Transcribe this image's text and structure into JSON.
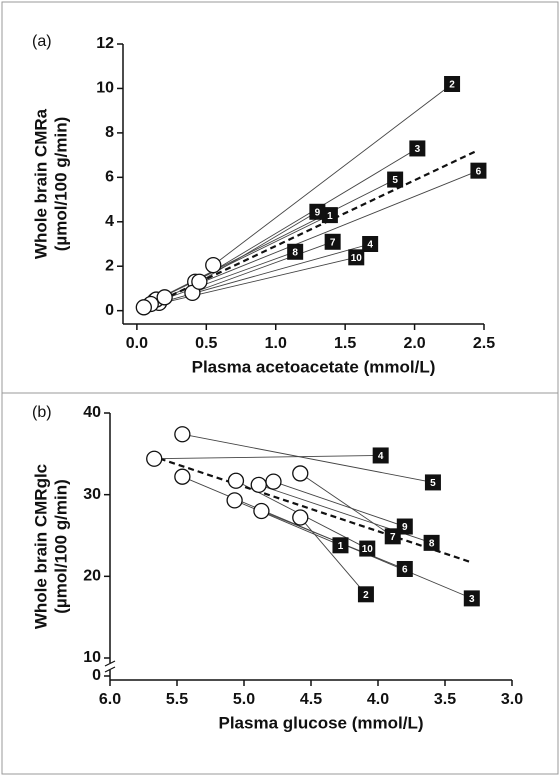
{
  "chart_data": [
    {
      "type": "scatter",
      "panel_label": "(a)",
      "xlabel": "Plasma acetoacetate (mmol/L)",
      "ylabel": [
        "Whole brain CMRa",
        "(µmol/100 g/min)"
      ],
      "subjects": [
        "1",
        "2",
        "3",
        "4",
        "5",
        "6",
        "7",
        "8",
        "9",
        "10"
      ],
      "baseline": {
        "x": [
          0.13,
          0.55,
          0.42,
          0.16,
          0.14,
          0.2,
          0.4,
          0.1,
          0.45,
          0.05
        ],
        "y": [
          0.45,
          2.05,
          1.3,
          0.35,
          0.5,
          0.6,
          0.8,
          0.3,
          1.3,
          0.15
        ]
      },
      "after": {
        "x": [
          1.39,
          2.27,
          2.02,
          1.68,
          1.86,
          2.46,
          1.41,
          1.14,
          1.3,
          1.58
        ],
        "y": [
          4.3,
          10.2,
          7.3,
          3.0,
          5.9,
          6.3,
          3.1,
          2.65,
          4.45,
          2.4
        ]
      },
      "fit": {
        "x": [
          0.05,
          2.45
        ],
        "y": [
          0.1,
          7.2
        ]
      },
      "xlim": [
        -0.1,
        2.5
      ],
      "xticks": [
        {
          "value": 0,
          "label": "0.0"
        },
        0.5,
        {
          "value": 1,
          "label": "1.0"
        },
        1.5,
        {
          "value": 2,
          "label": "2.0"
        },
        2.5
      ],
      "ylim": [
        -0.6,
        12
      ],
      "yticks": [
        0,
        2,
        4,
        6,
        8,
        10,
        12
      ]
    },
    {
      "type": "scatter",
      "panel_label": "(b)",
      "xlabel": "Plasma glucose (mmol/L)",
      "ylabel": [
        "Whole brain CMRglc",
        "(µmol/100 g/min)"
      ],
      "subjects": [
        "1",
        "2",
        "3",
        "4",
        "5",
        "6",
        "7",
        "8",
        "9",
        "10"
      ],
      "baseline": {
        "x": [
          5.07,
          4.58,
          5.46,
          5.67,
          5.46,
          4.87,
          4.58,
          4.89,
          4.78,
          5.06
        ],
        "y": [
          29.3,
          27.2,
          32.2,
          34.4,
          37.4,
          28.0,
          32.6,
          31.2,
          31.6,
          31.7
        ]
      },
      "after": {
        "x": [
          4.28,
          4.09,
          3.3,
          3.98,
          3.59,
          3.8,
          3.89,
          3.6,
          3.8,
          4.08
        ],
        "y": [
          23.8,
          17.8,
          17.3,
          34.8,
          31.5,
          20.9,
          24.9,
          24.1,
          26.1,
          23.4
        ]
      },
      "fit": {
        "x": [
          5.7,
          3.3
        ],
        "y": [
          34.8,
          21.7
        ]
      },
      "xlim": [
        6.0,
        3.0
      ],
      "xticks": [
        {
          "value": 6,
          "label": "6.0"
        },
        5.5,
        {
          "value": 5,
          "label": "5.0"
        },
        4.5,
        {
          "value": 4,
          "label": "4.0"
        },
        3.5,
        {
          "value": 3,
          "label": "3.0"
        }
      ],
      "ylim": [
        10,
        40
      ],
      "yticks": [
        0,
        10,
        20,
        30,
        40
      ],
      "y_break": true
    }
  ]
}
